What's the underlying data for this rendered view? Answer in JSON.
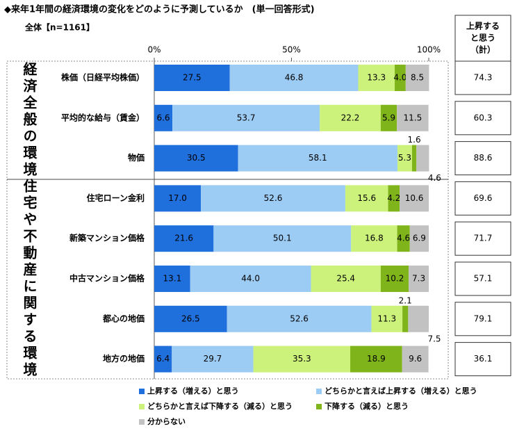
{
  "chart_data": {
    "type": "stacked-bar-h",
    "title": "◆来年1年間の経済環境の変化をどのように予測しているか　(単一回答形式)",
    "subtitle": "全体【n=1161】",
    "groups": [
      "経済全般の環境",
      "住宅や不動産に関する環境"
    ],
    "categories": [
      "株価（日経平均株価）",
      "平均的な給与（賃金）",
      "物価",
      "住宅ローン金利",
      "新築マンション価格",
      "中古マンション価格",
      "都心の地価",
      "地方の地価"
    ],
    "xlim": [
      0,
      100
    ],
    "xticks": [
      {
        "value": 0,
        "label": "0%"
      },
      {
        "value": 50,
        "label": "50%"
      },
      {
        "value": 100,
        "label": "100%"
      }
    ],
    "series": [
      {
        "name": "上昇する（増える）と思う",
        "color": "#1f6fdc",
        "values": [
          27.5,
          6.6,
          30.5,
          17.0,
          21.6,
          13.1,
          26.5,
          6.4
        ],
        "value_labels": [
          "27.5",
          "6.6",
          "30.5",
          "17.0",
          "21.6",
          "13.1",
          "26.5",
          "6.4"
        ]
      },
      {
        "name": "どちらかと言えば上昇する（増える）と思う",
        "color": "#9ccbf4",
        "values": [
          46.8,
          53.7,
          58.1,
          52.6,
          50.1,
          44.0,
          52.6,
          29.7
        ],
        "value_labels": [
          "46.8",
          "53.7",
          "58.1",
          "52.6",
          "50.1",
          "44.0",
          "52.6",
          "29.7"
        ]
      },
      {
        "name": "どちらかと言えば下降する（減る）と思う",
        "color": "#cdf27c",
        "values": [
          13.3,
          22.2,
          5.3,
          15.6,
          16.8,
          25.4,
          11.3,
          35.3
        ],
        "value_labels": [
          "13.3",
          "22.2",
          "5.3",
          "15.6",
          "16.8",
          "25.4",
          "11.3",
          "35.3"
        ]
      },
      {
        "name": "下降する（減る）と思う",
        "color": "#7fb51a",
        "values": [
          4.0,
          5.9,
          1.6,
          4.2,
          4.6,
          10.2,
          2.1,
          18.9
        ],
        "value_labels": [
          "4.0",
          "5.9",
          "1.6",
          "4.2",
          "4.6",
          "10.2",
          "2.1",
          "18.9"
        ]
      },
      {
        "name": "分からない",
        "color": "#c2c2c2",
        "values": [
          8.5,
          11.5,
          4.6,
          10.6,
          6.9,
          7.3,
          7.5,
          9.6
        ],
        "value_labels": [
          "8.5",
          "11.5",
          "4.6",
          "10.6",
          "6.9",
          "7.3",
          "7.5",
          "9.6"
        ]
      }
    ],
    "side_header": [
      "上昇する",
      "と思う",
      "（計）"
    ],
    "side_values": [
      74.3,
      60.3,
      88.6,
      69.6,
      71.7,
      57.1,
      79.1,
      36.1
    ]
  }
}
